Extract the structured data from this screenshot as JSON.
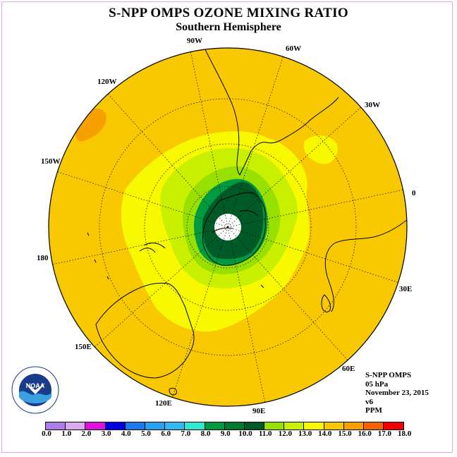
{
  "title": "S-NPP OMPS OZONE MIXING RATIO",
  "subtitle": "Southern Hemisphere",
  "longitude_labels": [
    "90W",
    "60W",
    "30W",
    "0",
    "30E",
    "60E",
    "90E",
    "120E",
    "150E",
    "180",
    "150W",
    "120W"
  ],
  "info": {
    "instrument": "S-NPP OMPS",
    "level": "05 hPa",
    "date": "November 23, 2015",
    "version": "v6",
    "units": "PPM"
  },
  "colorbar": {
    "ticks": [
      "0.0",
      "1.0",
      "2.0",
      "3.0",
      "4.0",
      "5.0",
      "6.0",
      "7.0",
      "8.0",
      "9.0",
      "10.0",
      "11.0",
      "12.0",
      "13.0",
      "14.0",
      "15.0",
      "16.0",
      "17.0",
      "18.0"
    ],
    "colors": [
      "#b07de8",
      "#d9a9ee",
      "#e010e0",
      "#0000e0",
      "#1e78f0",
      "#2aa0f0",
      "#30b8f0",
      "#30e8d0",
      "#009a40",
      "#007a30",
      "#005a28",
      "#98e000",
      "#c8f000",
      "#f8f800",
      "#f8c800",
      "#f8a000",
      "#f86000",
      "#f00000",
      "#7a4a2a"
    ]
  },
  "logo": {
    "text": "NOAA"
  }
}
